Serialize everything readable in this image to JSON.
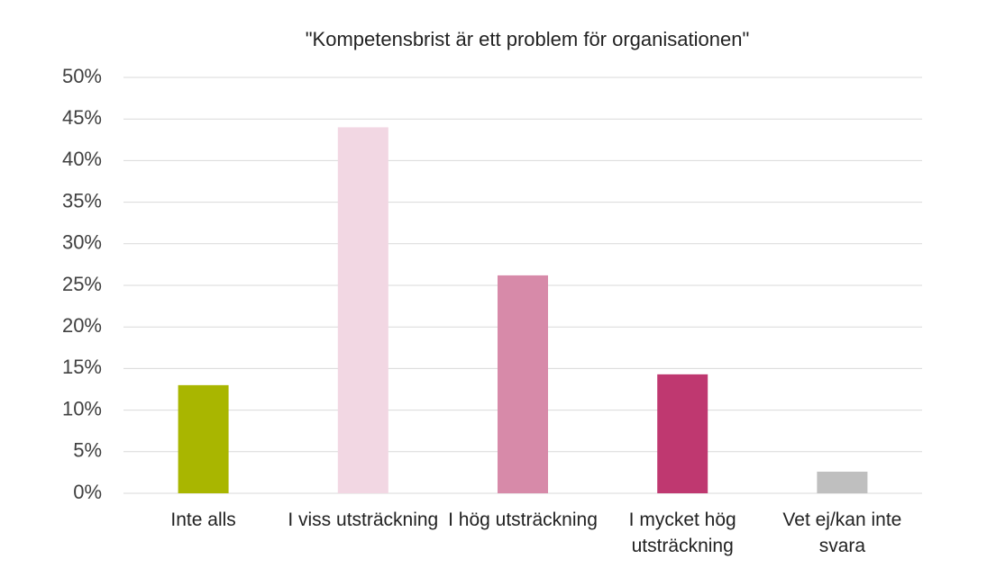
{
  "chart_data": {
    "type": "bar",
    "title": "\"Kompetensbrist är ett problem för organisationen\"",
    "categories": [
      "Inte alls",
      "I viss utsträckning",
      "I hög utsträckning",
      "I mycket hög utsträckning",
      "Vet ej/kan inte svara"
    ],
    "values": [
      13,
      44,
      26.2,
      14.3,
      2.6
    ],
    "colors": [
      "#a9b600",
      "#f2d7e3",
      "#d78aa9",
      "#bf3870",
      "#bfbfbf"
    ],
    "ylim": [
      0,
      50
    ],
    "yticks": [
      {
        "value": 0,
        "label": "0%"
      },
      {
        "value": 5,
        "label": "5%"
      },
      {
        "value": 10,
        "label": "10%"
      },
      {
        "value": 15,
        "label": "15%"
      },
      {
        "value": 20,
        "label": "20%"
      },
      {
        "value": 25,
        "label": "25%"
      },
      {
        "value": 30,
        "label": "30%"
      },
      {
        "value": 35,
        "label": "35%"
      },
      {
        "value": 40,
        "label": "40%"
      },
      {
        "value": 45,
        "label": "45%"
      },
      {
        "value": 50,
        "label": "50%"
      }
    ],
    "grid": true
  }
}
